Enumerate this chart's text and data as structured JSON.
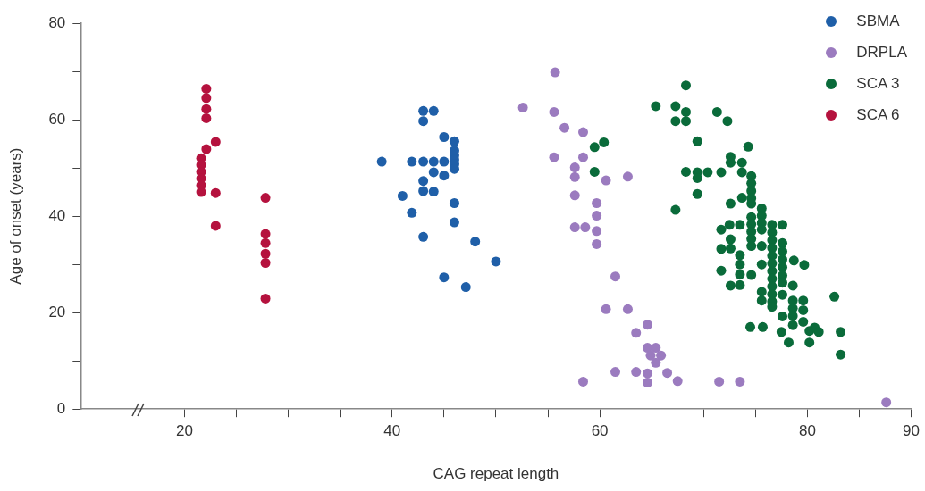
{
  "chart_data": {
    "type": "scatter",
    "xlabel": "CAG repeat length",
    "ylabel": "Age of onset (years)",
    "xlim": [
      10,
      90
    ],
    "xticks": [
      20,
      {
        "value": 25,
        "label": null
      },
      {
        "value": 30,
        "label": null
      },
      {
        "value": 35,
        "label": null
      },
      40,
      {
        "value": 45,
        "label": null
      },
      {
        "value": 50,
        "label": null
      },
      {
        "value": 55,
        "label": null
      },
      60,
      {
        "value": 65,
        "label": null
      },
      {
        "value": 70,
        "label": null
      },
      {
        "value": 75,
        "label": null
      },
      80,
      {
        "value": 85,
        "label": null
      },
      90
    ],
    "ylim": [
      0,
      80
    ],
    "yticks": [
      0,
      {
        "value": 10,
        "label": null
      },
      20,
      {
        "value": 30,
        "label": null
      },
      40,
      {
        "value": 50,
        "label": null
      },
      60,
      {
        "value": 70,
        "label": null
      },
      80
    ],
    "grid": false,
    "legend": "top right",
    "marker": "circle",
    "series": [
      {
        "name": "SBMA",
        "color": "#1f5fa8",
        "x": [
          39,
          41.9,
          41.9,
          41,
          43,
          43,
          43,
          43,
          43,
          43,
          44,
          44,
          44,
          44,
          45,
          45,
          45,
          45,
          46,
          46,
          46,
          46,
          46,
          46,
          46,
          46,
          47.1,
          48,
          50
        ],
        "values": [
          51.3,
          51.3,
          40.7,
          44.2,
          61.8,
          59.7,
          51.3,
          47.3,
          45.2,
          35.7,
          61.8,
          51.3,
          49.1,
          45.1,
          56.4,
          51.3,
          48.4,
          27.3,
          55.5,
          53.6,
          52.6,
          51.7,
          50.8,
          49.8,
          42.7,
          38.7,
          25.3,
          34.7,
          30.6
        ]
      },
      {
        "name": "DRPLA",
        "color": "#9b7bbf",
        "x": [
          55.7,
          52.6,
          55.6,
          56.6,
          58.4,
          55.6,
          58.4,
          57.6,
          57.6,
          60.6,
          62.7,
          57.6,
          59.7,
          59.7,
          57.6,
          58.6,
          59.7,
          59.7,
          61.5,
          60.6,
          62.7,
          64.6,
          63.5,
          64.6,
          65.4,
          64.9,
          65.9,
          65.4,
          61.5,
          63.5,
          64.6,
          66.5,
          58.4,
          64.6,
          67.5,
          71.5,
          73.5,
          87.6
        ],
        "values": [
          69.8,
          62.5,
          61.6,
          58.3,
          57.4,
          52.2,
          52.2,
          50.1,
          48.1,
          47.4,
          48.2,
          44.3,
          42.7,
          40.1,
          37.7,
          37.7,
          36.9,
          34.2,
          27.5,
          20.7,
          20.7,
          17.5,
          15.8,
          12.7,
          12.7,
          11.1,
          11.1,
          9.6,
          7.7,
          7.7,
          7.4,
          7.5,
          5.7,
          5.5,
          5.8,
          5.7,
          5.7,
          1.4
        ]
      },
      {
        "name": "SCA 3",
        "color": "#0a6b3a",
        "x": [
          68.3,
          65.4,
          67.3,
          68.3,
          67.3,
          68.3,
          59.5,
          60.4,
          59.5,
          68.3,
          67.3,
          71.3,
          72.3,
          69.4,
          74.3,
          70.4,
          69.4,
          69.4,
          69.4,
          71.7,
          72.6,
          72.6,
          73.7,
          73.7,
          74.6,
          74.6,
          74.6,
          74.6,
          72.6,
          73.7,
          74.6,
          75.6,
          75.6,
          75.6,
          75.6,
          74.6,
          74.6,
          74.6,
          74.6,
          74.6,
          72.5,
          73.5,
          71.7,
          72.6,
          71.7,
          72.6,
          75.6,
          76.6,
          76.6,
          76.6,
          76.6,
          76.6,
          76.6,
          76.6,
          76.6,
          76.6,
          76.6,
          76.6,
          76.6,
          77.6,
          77.6,
          77.6,
          77.6,
          77.6,
          77.6,
          77.6,
          78.7,
          79.7,
          75.6,
          73.5,
          73.5,
          73.5,
          73.5,
          74.6,
          71.7,
          72.6,
          75.6,
          75.6,
          77.6,
          78.6,
          78.6,
          78.6,
          78.6,
          78.6,
          79.6,
          79.6,
          79.6,
          77.6,
          77.5,
          78.2,
          80.2,
          80.2,
          80.7,
          81.1,
          82.6,
          83.2,
          83.2,
          74.5,
          75.7
        ],
        "values": [
          67.1,
          62.8,
          62.8,
          61.6,
          59.7,
          59.7,
          54.3,
          55.3,
          49.2,
          49.2,
          41.3,
          61.6,
          59.7,
          55.5,
          54.4,
          49.1,
          49.1,
          47.9,
          44.6,
          49.1,
          52.3,
          51.1,
          51.1,
          49.1,
          48.3,
          46.8,
          45.2,
          43.7,
          42.6,
          43.8,
          42.6,
          41.6,
          40.1,
          38.6,
          37.2,
          39.8,
          38.3,
          36.8,
          35.3,
          33.8,
          38.2,
          38.2,
          37.2,
          35.2,
          33.2,
          33.3,
          33.8,
          38.2,
          36.6,
          35,
          33.4,
          31.8,
          30.2,
          28.6,
          27,
          25.4,
          23.8,
          22.3,
          21.2,
          38.2,
          34.4,
          32.7,
          31,
          29.4,
          27.7,
          26.2,
          30.8,
          29.9,
          30,
          31.9,
          30,
          27.9,
          25.7,
          27.8,
          28.7,
          25.6,
          24.3,
          22.5,
          23.7,
          25.6,
          22.5,
          20.9,
          19.3,
          17.4,
          22.5,
          20.5,
          18.1,
          19.2,
          16,
          13.8,
          16.2,
          13.8,
          16.9,
          16,
          23.3,
          16,
          11.3,
          17,
          17
        ]
      },
      {
        "name": "SCA 6",
        "color": "#b5123e",
        "x": [
          22.1,
          22.1,
          22.1,
          22.1,
          22.1,
          21.6,
          21.6,
          21.6,
          21.6,
          21.6,
          21.6,
          23,
          23,
          23,
          27.8,
          27.8,
          27.8,
          27.8,
          27.8,
          27.8
        ],
        "values": [
          66.4,
          64.5,
          62.2,
          60.3,
          53.9,
          52,
          50.6,
          49.2,
          47.8,
          46.4,
          45,
          55.4,
          44.8,
          38,
          43.8,
          36.3,
          34.4,
          32.2,
          30.3,
          22.9
        ]
      }
    ]
  }
}
